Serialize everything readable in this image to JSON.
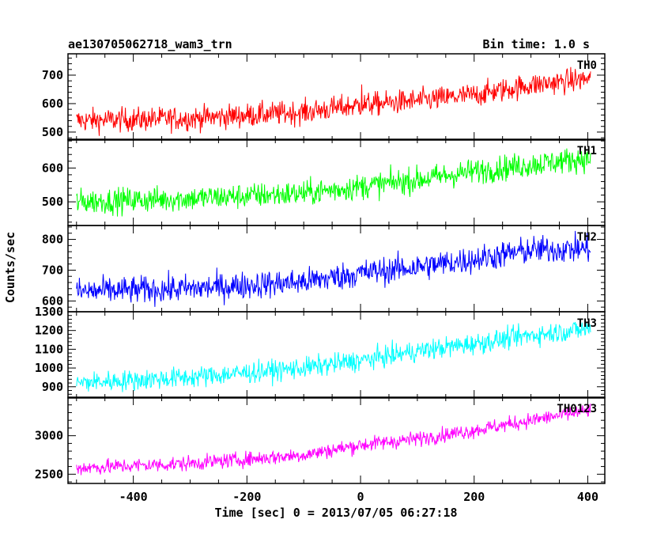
{
  "header": {
    "left_title": "ae130705062718_wam3_trn",
    "right_title": "Bin time: 1.0 s"
  },
  "chart_data": {
    "type": "line",
    "title": "ae130705062718_wam3_trn",
    "subtitle": "Bin time: 1.0 s",
    "xlabel": "Time [sec] 0 = 2013/07/05 06:27:18",
    "ylabel": "Counts/sec",
    "xlim": [
      -515,
      430
    ],
    "x_ticks": [
      -400,
      -200,
      0,
      200,
      400
    ],
    "grid": false,
    "x_start": -500,
    "x_end": 405,
    "x_step": 1,
    "panels": [
      {
        "label": "TH0",
        "color": "#ff0000",
        "ylim": [
          472,
          775
        ],
        "y_ticks": [
          500,
          600,
          700
        ],
        "trend": [
          [
            -500,
            540
          ],
          [
            -300,
            548
          ],
          [
            -100,
            570
          ],
          [
            0,
            595
          ],
          [
            100,
            610
          ],
          [
            200,
            630
          ],
          [
            300,
            665
          ],
          [
            405,
            688
          ]
        ],
        "noise": 30
      },
      {
        "label": "TH1",
        "color": "#00ff00",
        "ylim": [
          430,
          685
        ],
        "y_ticks": [
          500,
          600
        ],
        "trend": [
          [
            -500,
            500
          ],
          [
            -300,
            510
          ],
          [
            -100,
            525
          ],
          [
            0,
            545
          ],
          [
            100,
            565
          ],
          [
            200,
            590
          ],
          [
            300,
            610
          ],
          [
            405,
            630
          ]
        ],
        "noise": 27
      },
      {
        "label": "TH2",
        "color": "#0000ff",
        "ylim": [
          565,
          845
        ],
        "y_ticks": [
          600,
          700,
          800
        ],
        "trend": [
          [
            -500,
            630
          ],
          [
            -300,
            640
          ],
          [
            -100,
            662
          ],
          [
            0,
            690
          ],
          [
            100,
            710
          ],
          [
            200,
            735
          ],
          [
            300,
            765
          ],
          [
            405,
            770
          ]
        ],
        "noise": 32
      },
      {
        "label": "TH3",
        "color": "#00ffff",
        "ylim": [
          840,
          1300
        ],
        "y_ticks": [
          900,
          1000,
          1100,
          1200,
          1300
        ],
        "trend": [
          [
            -500,
            920
          ],
          [
            -300,
            950
          ],
          [
            -100,
            1000
          ],
          [
            0,
            1040
          ],
          [
            100,
            1090
          ],
          [
            200,
            1130
          ],
          [
            300,
            1175
          ],
          [
            405,
            1210
          ]
        ],
        "noise": 40
      },
      {
        "label": "TH0123",
        "color": "#ff00ff",
        "ylim": [
          2380,
          3500
        ],
        "y_ticks": [
          2500,
          3000
        ],
        "trend": [
          [
            -500,
            2580
          ],
          [
            -300,
            2640
          ],
          [
            -100,
            2750
          ],
          [
            0,
            2880
          ],
          [
            100,
            2960
          ],
          [
            200,
            3070
          ],
          [
            300,
            3200
          ],
          [
            405,
            3330
          ]
        ],
        "noise": 70
      }
    ]
  }
}
